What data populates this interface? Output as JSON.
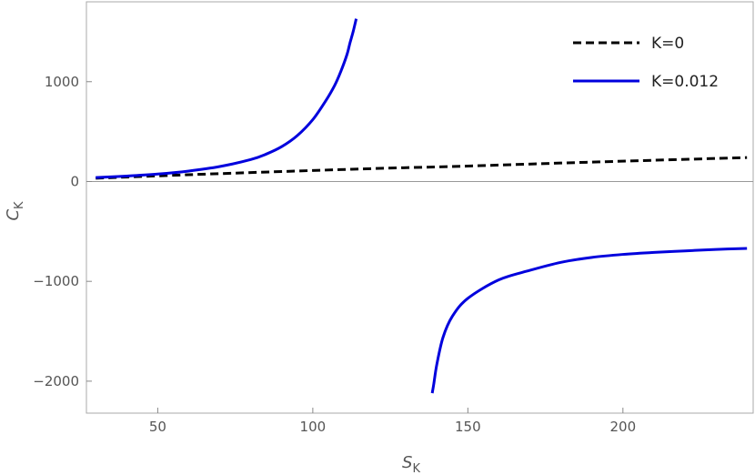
{
  "chart_data": {
    "type": "line",
    "title": "",
    "xlabel": {
      "main": "S",
      "sub": "K"
    },
    "ylabel": {
      "main": "C",
      "sub": "K"
    },
    "xlim": [
      27,
      242
    ],
    "ylim": [
      -2320,
      1800
    ],
    "xticks": [
      50,
      100,
      150,
      200
    ],
    "xtick_labels": [
      "50",
      "100",
      "150",
      "200"
    ],
    "yticks": [
      -2000,
      -1000,
      0,
      1000
    ],
    "ytick_labels": [
      "−2000",
      "−1000",
      "0",
      "1000"
    ],
    "grid": false,
    "legend": "top-right",
    "series": [
      {
        "name": "K=0",
        "color": "#000000",
        "dash": "dashed",
        "segments": [
          [
            [
              30,
              33
            ],
            [
              60,
              68
            ],
            [
              90,
              100
            ],
            [
              120,
              130
            ],
            [
              150,
              155
            ],
            [
              180,
              185
            ],
            [
              210,
              213
            ],
            [
              240,
              240
            ]
          ]
        ]
      },
      {
        "name": "K=0.012",
        "color": "#0000dd",
        "dash": "solid",
        "segments": [
          [
            [
              30,
              40
            ],
            [
              40,
              55
            ],
            [
              50,
              75
            ],
            [
              60,
              105
            ],
            [
              70,
              150
            ],
            [
              80,
              220
            ],
            [
              85,
              275
            ],
            [
              90,
              350
            ],
            [
              95,
              460
            ],
            [
              100,
              620
            ],
            [
              104,
              800
            ],
            [
              107,
              960
            ],
            [
              109,
              1100
            ],
            [
              111,
              1270
            ],
            [
              112,
              1390
            ],
            [
              113,
              1500
            ],
            [
              114,
              1630
            ]
          ],
          [
            [
              138.5,
              -2120
            ],
            [
              139,
              -2030
            ],
            [
              140,
              -1830
            ],
            [
              142,
              -1560
            ],
            [
              145,
              -1350
            ],
            [
              150,
              -1170
            ],
            [
              160,
              -985
            ],
            [
              170,
              -890
            ],
            [
              180,
              -810
            ],
            [
              190,
              -760
            ],
            [
              200,
              -730
            ],
            [
              210,
              -710
            ],
            [
              220,
              -695
            ],
            [
              230,
              -680
            ],
            [
              240,
              -670
            ]
          ]
        ]
      }
    ]
  }
}
